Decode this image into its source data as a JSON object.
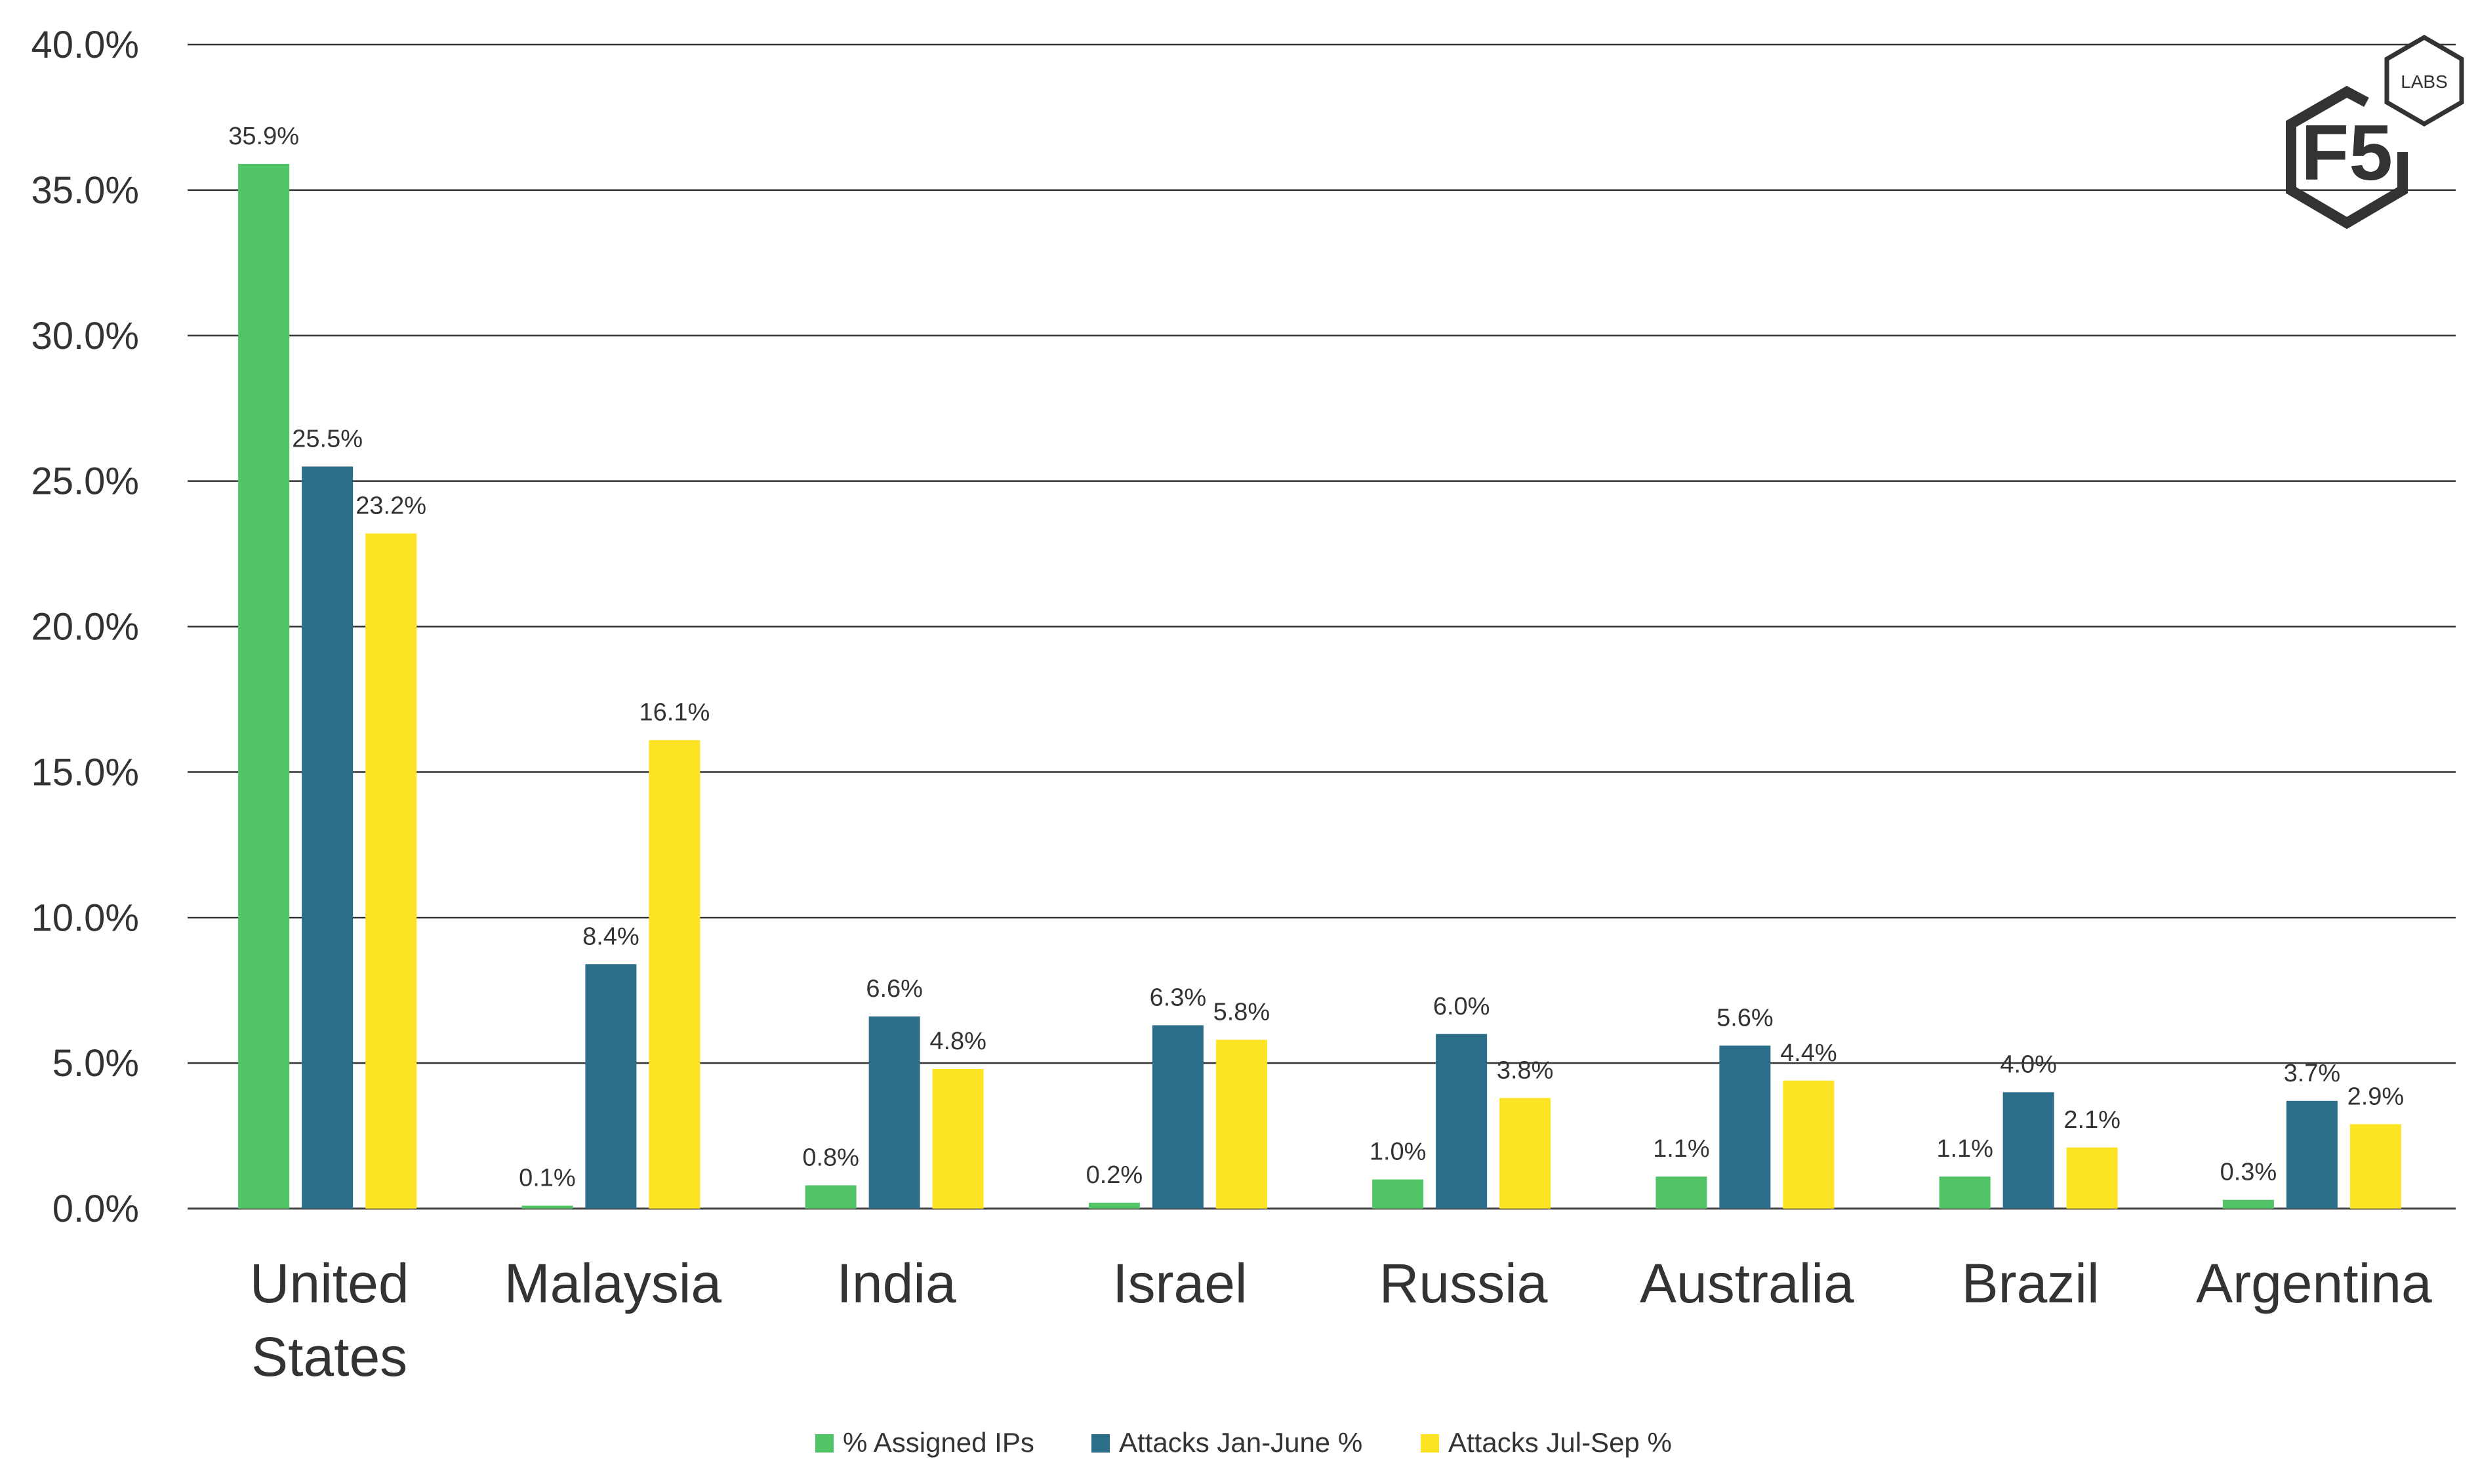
{
  "chart_data": {
    "type": "bar",
    "categories": [
      "United States",
      "Malaysia",
      "India",
      "Israel",
      "Russia",
      "Australia",
      "Brazil",
      "Argentina"
    ],
    "category_lines": [
      [
        "United",
        "States"
      ],
      [
        "Malaysia"
      ],
      [
        "India"
      ],
      [
        "Israel"
      ],
      [
        "Russia"
      ],
      [
        "Australia"
      ],
      [
        "Brazil"
      ],
      [
        "Argentina"
      ]
    ],
    "series": [
      {
        "name": "% Assigned IPs",
        "color": "#50C467",
        "values": [
          35.9,
          0.1,
          0.8,
          0.2,
          1.0,
          1.1,
          1.1,
          0.3
        ]
      },
      {
        "name": "Attacks Jan-June %",
        "color": "#2C6E8A",
        "values": [
          25.5,
          8.4,
          6.6,
          6.3,
          6.0,
          5.6,
          4.0,
          3.7
        ]
      },
      {
        "name": "Attacks Jul-Sep %",
        "color": "#FCE323",
        "values": [
          23.2,
          16.1,
          4.8,
          5.8,
          3.8,
          4.4,
          2.1,
          2.9
        ]
      }
    ],
    "data_labels": [
      [
        "35.9%",
        "0.1%",
        "0.8%",
        "0.2%",
        "1.0%",
        "1.1%",
        "1.1%",
        "0.3%"
      ],
      [
        "25.5%",
        "8.4%",
        "6.6%",
        "6.3%",
        "6.0%",
        "5.6%",
        "4.0%",
        "3.7%"
      ],
      [
        "23.2%",
        "16.1%",
        "4.8%",
        "5.8%",
        "3.8%",
        "4.4%",
        "2.1%",
        "2.9%"
      ]
    ],
    "yticks": [
      0,
      5,
      10,
      15,
      20,
      25,
      30,
      35,
      40
    ],
    "ytick_labels": [
      "0.0%",
      "5.0%",
      "10.0%",
      "15.0%",
      "20.0%",
      "25.0%",
      "30.0%",
      "35.0%",
      "40.0%"
    ],
    "ylim": [
      0,
      40
    ],
    "grid": true,
    "legend_position": "bottom"
  },
  "logo": {
    "main": "F5",
    "badge": "LABS"
  }
}
